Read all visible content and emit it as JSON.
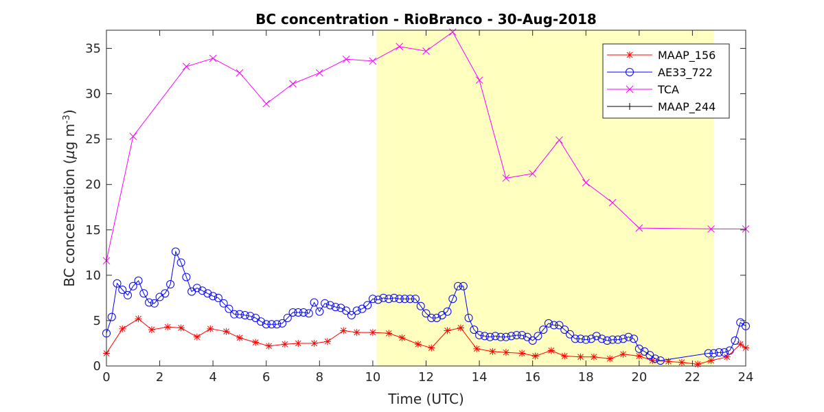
{
  "chart_data": {
    "type": "line",
    "title": "BC concentration  - RioBranco - 30-Aug-2018",
    "xlabel": "Time (UTC)",
    "ylabel": {
      "prefix": "BC concentration (",
      "mu": "µ",
      "unit": "g m",
      "exponent": "-3",
      "suffix": ")"
    },
    "xlim": [
      0,
      24
    ],
    "ylim": [
      0,
      37
    ],
    "xticks": [
      0,
      2,
      4,
      6,
      8,
      10,
      12,
      14,
      16,
      18,
      20,
      22,
      24
    ],
    "yticks": [
      0,
      5,
      10,
      15,
      20,
      25,
      30,
      35
    ],
    "grid": false,
    "legend_position": "top-right",
    "shaded_region": {
      "x": [
        10.15,
        22.8
      ],
      "color": "#ffffbf"
    },
    "series": [
      {
        "name": "MAAP_156",
        "color": "#ff0000",
        "marker": "asterisk",
        "x": [
          0,
          0.6,
          1.2,
          1.7,
          2.3,
          2.8,
          3.4,
          3.9,
          4.5,
          5.0,
          5.6,
          6.1,
          6.7,
          7.2,
          7.8,
          8.3,
          8.9,
          9.4,
          10.0,
          10.6,
          11.1,
          11.7,
          12.2,
          12.8,
          13.3,
          13.9,
          14.5,
          15.0,
          15.6,
          16.1,
          16.7,
          17.2,
          17.8,
          18.3,
          18.9,
          19.4,
          20.0,
          20.5,
          21.1,
          21.6,
          22.2,
          22.7,
          23.3,
          23.8,
          24.0
        ],
        "values": [
          1.4,
          4.1,
          5.2,
          4.0,
          4.3,
          4.2,
          3.2,
          4.1,
          3.8,
          3.1,
          2.6,
          2.2,
          2.4,
          2.5,
          2.5,
          2.7,
          3.9,
          3.7,
          3.7,
          3.6,
          3.1,
          2.4,
          2.0,
          3.9,
          4.2,
          1.9,
          1.6,
          1.5,
          1.4,
          1.1,
          1.7,
          1.1,
          1.0,
          1.0,
          0.8,
          1.3,
          1.1,
          0.6,
          0.5,
          0.4,
          0.2,
          0.6,
          1.0,
          2.4,
          2.0
        ]
      },
      {
        "name": "AE33_722",
        "color": "#0000ff",
        "marker": "circle",
        "x": [
          0,
          0.2,
          0.4,
          0.6,
          0.8,
          1.0,
          1.2,
          1.4,
          1.6,
          1.8,
          2.0,
          2.2,
          2.4,
          2.6,
          2.8,
          3.0,
          3.2,
          3.4,
          3.6,
          3.8,
          4.0,
          4.2,
          4.4,
          4.6,
          4.8,
          5.0,
          5.2,
          5.4,
          5.6,
          5.8,
          6.0,
          6.2,
          6.4,
          6.6,
          6.8,
          7.0,
          7.2,
          7.4,
          7.6,
          7.8,
          8.0,
          8.2,
          8.4,
          8.6,
          8.8,
          9.0,
          9.2,
          9.4,
          9.6,
          9.8,
          10.0,
          10.2,
          10.4,
          10.6,
          10.8,
          11.0,
          11.2,
          11.4,
          11.6,
          11.8,
          12.0,
          12.2,
          12.4,
          12.6,
          12.8,
          13.0,
          13.2,
          13.4,
          13.6,
          13.8,
          14.0,
          14.2,
          14.4,
          14.6,
          14.8,
          15.0,
          15.2,
          15.4,
          15.6,
          15.8,
          16.0,
          16.2,
          16.4,
          16.6,
          16.8,
          17.0,
          17.2,
          17.4,
          17.6,
          17.8,
          18.0,
          18.2,
          18.4,
          18.6,
          18.8,
          19.0,
          19.2,
          19.4,
          19.6,
          19.8,
          20.0,
          20.2,
          20.4,
          20.6,
          20.8,
          22.6,
          22.8,
          23.0,
          23.2,
          23.4,
          23.6,
          23.8,
          24.0
        ],
        "values": [
          3.6,
          5.4,
          9.1,
          8.4,
          7.8,
          8.8,
          9.4,
          8.0,
          7.0,
          6.9,
          7.6,
          8.0,
          9.0,
          12.6,
          11.4,
          9.8,
          8.2,
          8.6,
          8.3,
          8.0,
          7.7,
          7.5,
          6.9,
          6.3,
          5.7,
          5.7,
          5.6,
          5.5,
          5.3,
          4.9,
          4.6,
          4.6,
          4.6,
          4.7,
          5.3,
          5.9,
          5.9,
          5.9,
          5.8,
          7.0,
          6.0,
          6.9,
          6.7,
          6.5,
          6.4,
          6.1,
          5.6,
          6.1,
          6.3,
          6.7,
          7.4,
          7.3,
          7.5,
          7.4,
          7.5,
          7.4,
          7.4,
          7.4,
          7.4,
          6.6,
          5.8,
          5.3,
          5.3,
          5.6,
          6.0,
          7.4,
          8.8,
          8.8,
          5.3,
          4.0,
          3.4,
          3.3,
          3.2,
          3.3,
          3.2,
          3.2,
          3.3,
          3.4,
          3.4,
          3.2,
          2.8,
          3.3,
          4.0,
          4.7,
          4.5,
          4.5,
          4.0,
          3.5,
          3.0,
          3.0,
          2.9,
          3.0,
          3.3,
          3.0,
          2.8,
          2.9,
          2.9,
          3.0,
          3.2,
          3.0,
          1.9,
          1.6,
          1.2,
          0.8,
          0.6,
          1.4,
          1.4,
          1.5,
          1.5,
          1.7,
          2.8,
          4.8,
          4.4
        ]
      },
      {
        "name": "TCA",
        "color": "#ff00ff",
        "marker": "x",
        "x": [
          0,
          1.0,
          3.0,
          4.0,
          5.0,
          6.0,
          7.0,
          8.0,
          9.0,
          10.0,
          11.0,
          12.0,
          13.0,
          14.0,
          15.0,
          16.0,
          17.0,
          18.0,
          19.0,
          20.0,
          22.7,
          24.0
        ],
        "values": [
          11.6,
          25.3,
          33.0,
          33.9,
          32.3,
          28.9,
          31.1,
          32.3,
          33.8,
          33.6,
          35.2,
          34.7,
          36.8,
          31.5,
          20.7,
          21.2,
          24.9,
          20.2,
          18.0,
          15.2,
          15.1,
          15.1
        ]
      },
      {
        "name": "MAAP_244",
        "color": "#000000",
        "marker": "plus",
        "x": [],
        "values": []
      }
    ]
  }
}
